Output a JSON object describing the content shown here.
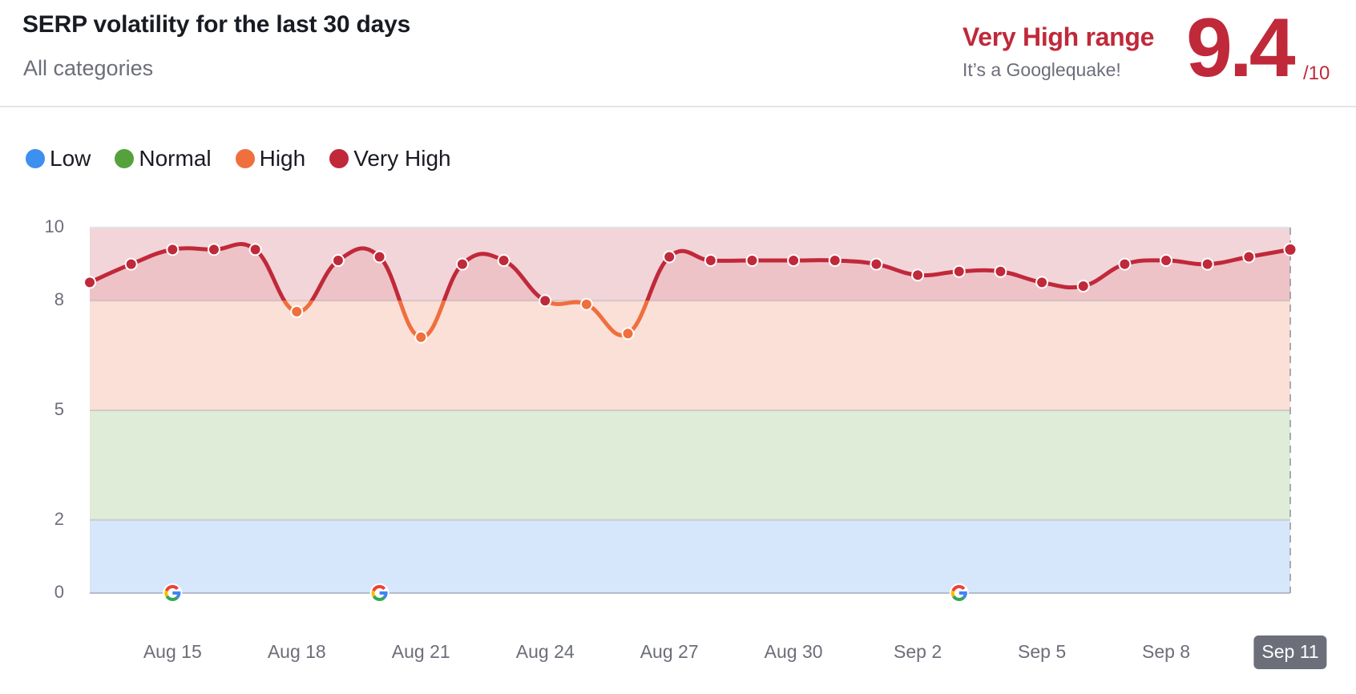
{
  "header": {
    "title": "SERP volatility for the last 30 days",
    "subtitle": "All categories",
    "range_label": "Very High range",
    "range_message": "It’s a Googlequake!",
    "score": "9.4",
    "score_max": "/10"
  },
  "colors": {
    "low": "#3d8ff0",
    "normal": "#55a23c",
    "high": "#ef6f3d",
    "very_high": "#c0293a",
    "band_low": "#d6e6fb",
    "band_normal": "#deecd8",
    "band_high": "#fbe0d8",
    "band_very_high": "#f2d5d9"
  },
  "legend": {
    "items": [
      {
        "label": "Low",
        "color": "#3d8ff0"
      },
      {
        "label": "Normal",
        "color": "#55a23c"
      },
      {
        "label": "High",
        "color": "#ef6f3d"
      },
      {
        "label": "Very High",
        "color": "#c0293a"
      }
    ]
  },
  "chart_data": {
    "type": "line",
    "title": "SERP volatility for the last 30 days",
    "subtitle": "All categories",
    "xlabel": "",
    "ylabel": "",
    "ylim": [
      0,
      10
    ],
    "y_ticks": [
      0,
      2,
      5,
      8,
      10
    ],
    "bands": [
      {
        "name": "Low",
        "from": 0,
        "to": 2,
        "color": "#d6e6fb"
      },
      {
        "name": "Normal",
        "from": 2,
        "to": 5,
        "color": "#deecd8"
      },
      {
        "name": "High",
        "from": 5,
        "to": 8,
        "color": "#fbe0d8"
      },
      {
        "name": "Very High",
        "from": 8,
        "to": 10,
        "color": "#f2d5d9"
      }
    ],
    "x": [
      "Aug 13",
      "Aug 14",
      "Aug 15",
      "Aug 16",
      "Aug 17",
      "Aug 18",
      "Aug 19",
      "Aug 20",
      "Aug 21",
      "Aug 22",
      "Aug 23",
      "Aug 24",
      "Aug 25",
      "Aug 26",
      "Aug 27",
      "Aug 28",
      "Aug 29",
      "Aug 30",
      "Aug 31",
      "Sep 1",
      "Sep 2",
      "Sep 3",
      "Sep 4",
      "Sep 5",
      "Sep 6",
      "Sep 7",
      "Sep 8",
      "Sep 9",
      "Sep 10",
      "Sep 11"
    ],
    "values": [
      8.5,
      9.0,
      9.4,
      9.4,
      9.4,
      7.7,
      9.1,
      9.2,
      7.0,
      9.0,
      9.1,
      8.0,
      7.9,
      7.1,
      9.2,
      9.1,
      9.1,
      9.1,
      9.1,
      9.0,
      8.7,
      8.8,
      8.8,
      8.5,
      8.4,
      9.0,
      9.1,
      9.0,
      9.2,
      9.4
    ],
    "x_tick_labels": [
      {
        "label": "Aug 15",
        "index": 2
      },
      {
        "label": "Aug 18",
        "index": 5
      },
      {
        "label": "Aug 21",
        "index": 8
      },
      {
        "label": "Aug 24",
        "index": 11
      },
      {
        "label": "Aug 27",
        "index": 14
      },
      {
        "label": "Aug 30",
        "index": 17
      },
      {
        "label": "Sep 2",
        "index": 20
      },
      {
        "label": "Sep 5",
        "index": 23
      },
      {
        "label": "Sep 8",
        "index": 26
      },
      {
        "label": "Sep 11",
        "index": 29,
        "highlighted": true
      }
    ],
    "google_update_markers": [
      {
        "date": "Aug 15",
        "index": 2
      },
      {
        "date": "Aug 20",
        "index": 7
      },
      {
        "date": "Sep 3",
        "index": 21
      }
    ],
    "legend_position": "top-left",
    "grid": true
  }
}
